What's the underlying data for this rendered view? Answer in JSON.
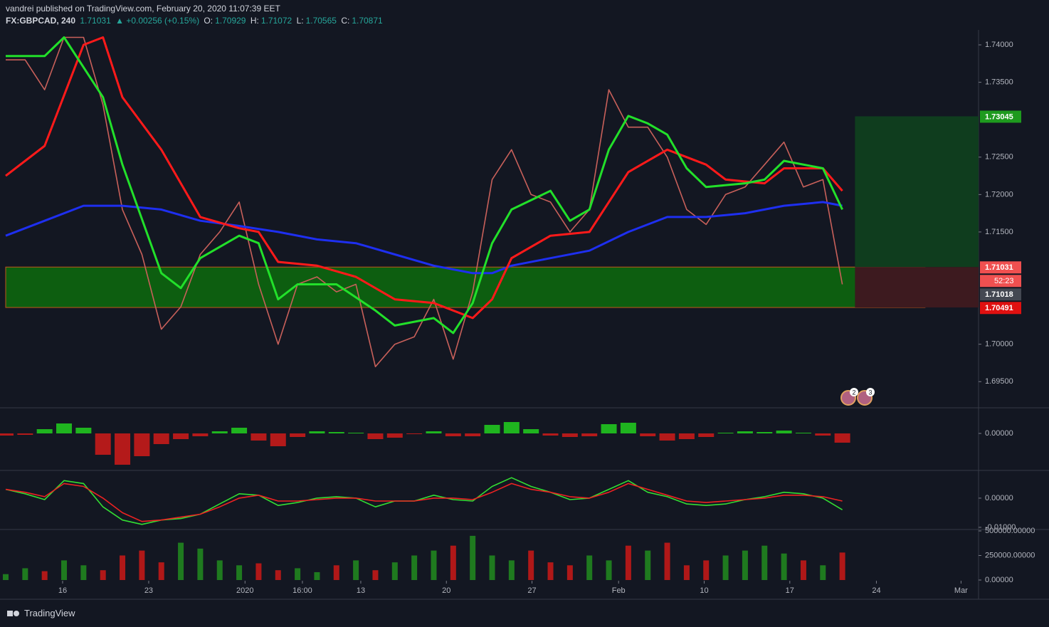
{
  "header": {
    "publisher": "vandrei published on TradingView.com, February 20, 2020 11:07:39 EET",
    "symbol": "FX:GBPCAD, 240",
    "last": "1.71031",
    "change": "▲ +0.00256 (+0.15%)",
    "o_label": "O:",
    "o": "1.70929",
    "h_label": "H:",
    "h": "1.71072",
    "l_label": "L:",
    "l": "1.70565",
    "c_label": "C:",
    "c": "1.70871"
  },
  "footer": {
    "brand": "TradingView"
  },
  "events": [
    "2",
    "3"
  ],
  "chart_data": [
    {
      "type": "line",
      "ylim": [
        1.6916,
        1.742
      ],
      "yticks": [
        {
          "value": 1.74,
          "label": "1.74000"
        },
        {
          "value": 1.735,
          "label": "1.73500"
        },
        {
          "value": 1.725,
          "label": "1.72500"
        },
        {
          "value": 1.72,
          "label": "1.72000"
        },
        {
          "value": 1.715,
          "label": "1.71500"
        },
        {
          "value": 1.7,
          "label": "1.70000"
        },
        {
          "value": 1.695,
          "label": "1.69500"
        }
      ],
      "series": [
        {
          "color": "#c8605a",
          "x": [
            0,
            2,
            4,
            6,
            8,
            10,
            12,
            14,
            16,
            18,
            20,
            22,
            24,
            26,
            28,
            30,
            32,
            34,
            36,
            38,
            40,
            42,
            44,
            46,
            48,
            50,
            52,
            54,
            56,
            58,
            60,
            62,
            64,
            66,
            68,
            70,
            72,
            74,
            76,
            78,
            80,
            82,
            84,
            86
          ],
          "values": [
            1.738,
            1.738,
            1.734,
            1.741,
            1.741,
            1.732,
            1.718,
            1.712,
            1.702,
            1.705,
            1.712,
            1.715,
            1.719,
            1.708,
            1.7,
            1.708,
            1.709,
            1.707,
            1.708,
            1.697,
            1.7,
            1.701,
            1.706,
            1.698,
            1.707,
            1.722,
            1.726,
            1.72,
            1.719,
            1.715,
            1.718,
            1.734,
            1.729,
            1.729,
            1.725,
            1.718,
            1.716,
            1.72,
            1.721,
            1.724,
            1.727,
            1.721,
            1.722,
            1.708
          ]
        },
        {
          "color": "#1e2ff0",
          "x": [
            0,
            4,
            8,
            12,
            16,
            20,
            24,
            28,
            32,
            36,
            40,
            44,
            48,
            50,
            52,
            56,
            60,
            64,
            68,
            72,
            76,
            80,
            84,
            86
          ],
          "values": [
            1.7145,
            1.7165,
            1.7185,
            1.7185,
            1.718,
            1.7165,
            1.7158,
            1.715,
            1.714,
            1.7135,
            1.712,
            1.7105,
            1.7095,
            1.7095,
            1.7105,
            1.7115,
            1.7125,
            1.715,
            1.717,
            1.717,
            1.7175,
            1.7185,
            1.719,
            1.7185
          ]
        },
        {
          "color": "#ff1a1a",
          "x": [
            0,
            4,
            8,
            10,
            12,
            16,
            20,
            24,
            26,
            28,
            32,
            36,
            40,
            44,
            48,
            50,
            52,
            56,
            60,
            64,
            68,
            72,
            74,
            78,
            80,
            84,
            86
          ],
          "values": [
            1.7225,
            1.7265,
            1.74,
            1.741,
            1.733,
            1.726,
            1.717,
            1.7155,
            1.715,
            1.711,
            1.7105,
            1.709,
            1.706,
            1.7055,
            1.7035,
            1.706,
            1.7115,
            1.7145,
            1.715,
            1.723,
            1.726,
            1.724,
            1.722,
            1.7215,
            1.7235,
            1.7235,
            1.7205
          ]
        },
        {
          "color": "#22e02a",
          "x": [
            0,
            4,
            6,
            10,
            12,
            16,
            18,
            20,
            24,
            26,
            28,
            30,
            34,
            38,
            40,
            44,
            46,
            48,
            50,
            52,
            56,
            58,
            60,
            62,
            64,
            66,
            68,
            70,
            72,
            76,
            78,
            80,
            84,
            86
          ],
          "values": [
            1.7385,
            1.7385,
            1.741,
            1.733,
            1.724,
            1.7095,
            1.7075,
            1.7115,
            1.7145,
            1.7135,
            1.706,
            1.708,
            1.708,
            1.7045,
            1.7025,
            1.7035,
            1.7015,
            1.7055,
            1.7135,
            1.718,
            1.7205,
            1.7165,
            1.718,
            1.726,
            1.7305,
            1.7295,
            1.728,
            1.7235,
            1.721,
            1.7215,
            1.722,
            1.7245,
            1.7235,
            1.718
          ]
        }
      ],
      "zones": [
        {
          "x": [
            0,
            94.5
          ],
          "y": [
            1.70491,
            1.71031
          ],
          "color": "#0d6b0d"
        },
        {
          "x": [
            87.3,
            100
          ],
          "y": [
            1.71031,
            1.73045
          ],
          "color": "#0f3d1e"
        },
        {
          "x": [
            87.3,
            100
          ],
          "y": [
            1.70491,
            1.71031
          ],
          "color": "#3d1a1f"
        }
      ],
      "price_labels": [
        {
          "value": 1.73045,
          "color": "#1e9a1e"
        },
        {
          "value": 1.71031,
          "color": "#f05050"
        },
        {
          "value": 1.71018,
          "color": "#444852"
        },
        {
          "value": 1.70491,
          "color": "#e01010"
        }
      ],
      "countdown": {
        "label": "52:23",
        "color": "#f05050"
      }
    },
    {
      "type": "bar",
      "ylim": [
        -0.0051,
        0.0034
      ],
      "yticks": [
        {
          "value": 0,
          "label": "0.00000"
        }
      ],
      "up_color": "#1fb41f",
      "down_color": "#b41a1a",
      "x": [
        0,
        2,
        4,
        6,
        8,
        10,
        12,
        14,
        16,
        18,
        20,
        22,
        24,
        26,
        28,
        30,
        32,
        34,
        36,
        38,
        40,
        42,
        44,
        46,
        48,
        50,
        52,
        54,
        56,
        58,
        60,
        62,
        64,
        66,
        68,
        70,
        72,
        74,
        76,
        78,
        80,
        82,
        84,
        86
      ],
      "values": [
        -0.0003,
        -0.0002,
        0.0006,
        0.0014,
        0.0008,
        -0.003,
        -0.0044,
        -0.0032,
        -0.0015,
        -0.0008,
        -0.0004,
        0.0003,
        0.0008,
        -0.001,
        -0.0018,
        -0.0005,
        0.0003,
        0.0002,
        0.0001,
        -0.0008,
        -0.0006,
        -0.0001,
        0.0003,
        -0.0004,
        -0.0004,
        0.0012,
        0.0016,
        0.0006,
        -0.0003,
        -0.0005,
        -0.0004,
        0.0013,
        0.0015,
        -0.0004,
        -0.001,
        -0.0008,
        -0.0005,
        0.0001,
        0.0003,
        0.0002,
        0.0004,
        0.0001,
        -0.0003,
        -0.0013
      ]
    },
    {
      "type": "line",
      "ylim": [
        -0.0105,
        0.009
      ],
      "yticks": [
        {
          "value": 0,
          "label": "0.00000"
        },
        {
          "value": -0.01,
          "label": "-0.01000"
        }
      ],
      "series": [
        {
          "color": "#33dd33",
          "x": [
            0,
            2,
            4,
            6,
            8,
            10,
            12,
            14,
            16,
            18,
            20,
            22,
            24,
            26,
            28,
            30,
            32,
            34,
            36,
            38,
            40,
            42,
            44,
            46,
            48,
            50,
            52,
            54,
            56,
            58,
            60,
            62,
            64,
            66,
            68,
            70,
            72,
            74,
            76,
            78,
            80,
            82,
            84,
            86
          ],
          "values": [
            0.003,
            0.0015,
            -0.0005,
            0.006,
            0.005,
            -0.003,
            -0.0075,
            -0.009,
            -0.0075,
            -0.007,
            -0.0055,
            -0.002,
            0.0015,
            0.001,
            -0.0025,
            -0.0015,
            0,
            0.0005,
            0,
            -0.003,
            -0.001,
            -0.001,
            0.001,
            -0.0005,
            -0.001,
            0.004,
            0.007,
            0.004,
            0.002,
            -0.0005,
            0,
            0.003,
            0.006,
            0.002,
            0.0005,
            -0.002,
            -0.0025,
            -0.002,
            -0.0005,
            0.0005,
            0.002,
            0.0015,
            0,
            -0.004
          ]
        },
        {
          "color": "#ee2222",
          "x": [
            0,
            2,
            4,
            6,
            8,
            10,
            12,
            14,
            16,
            18,
            20,
            22,
            24,
            26,
            28,
            30,
            32,
            34,
            36,
            38,
            40,
            42,
            44,
            46,
            48,
            50,
            52,
            54,
            56,
            58,
            60,
            62,
            64,
            66,
            68,
            70,
            72,
            74,
            76,
            78,
            80,
            82,
            84,
            86
          ],
          "values": [
            0.003,
            0.002,
            0.0005,
            0.005,
            0.004,
            0,
            -0.005,
            -0.008,
            -0.0075,
            -0.0065,
            -0.0055,
            -0.003,
            0,
            0.001,
            -0.001,
            -0.001,
            -0.0005,
            0,
            0,
            -0.001,
            -0.001,
            -0.001,
            0,
            0,
            -0.0005,
            0.002,
            0.005,
            0.003,
            0.002,
            0.0005,
            0,
            0.002,
            0.005,
            0.003,
            0.001,
            -0.001,
            -0.0015,
            -0.001,
            -0.0005,
            0,
            0.001,
            0.001,
            0.0005,
            -0.001
          ]
        }
      ]
    },
    {
      "type": "bar",
      "ylim": [
        0,
        500000
      ],
      "yticks": [
        {
          "value": 0,
          "label": "0.00000"
        },
        {
          "value": 250000,
          "label": "250000.00000"
        },
        {
          "value": 500000,
          "label": "500000.00000"
        }
      ],
      "up_color": "#1f7a1f",
      "down_color": "#b01818",
      "x": [
        0,
        2,
        4,
        6,
        8,
        10,
        12,
        14,
        16,
        18,
        20,
        22,
        24,
        26,
        28,
        30,
        32,
        34,
        36,
        38,
        40,
        42,
        44,
        46,
        48,
        50,
        52,
        54,
        56,
        58,
        60,
        62,
        64,
        66,
        68,
        70,
        72,
        74,
        76,
        78,
        80,
        82,
        84,
        86
      ],
      "values": [
        60000,
        120000,
        90000,
        200000,
        150000,
        100000,
        250000,
        300000,
        180000,
        380000,
        320000,
        200000,
        150000,
        170000,
        100000,
        120000,
        80000,
        150000,
        200000,
        100000,
        180000,
        250000,
        300000,
        350000,
        450000,
        250000,
        200000,
        300000,
        180000,
        150000,
        250000,
        200000,
        350000,
        300000,
        380000,
        150000,
        200000,
        250000,
        300000,
        350000,
        270000,
        200000,
        150000,
        280000
      ],
      "xlim": [
        0,
        100
      ],
      "xticks": [
        {
          "value": 5.85,
          "label": "16"
        },
        {
          "value": 14.7,
          "label": "23"
        },
        {
          "value": 24.6,
          "label": "2020"
        },
        {
          "value": 30.5,
          "label": "16:00"
        },
        {
          "value": 36.5,
          "label": "13"
        },
        {
          "value": 45.3,
          "label": "20"
        },
        {
          "value": 54.1,
          "label": "27"
        },
        {
          "value": 63,
          "label": "Feb"
        },
        {
          "value": 71.8,
          "label": "10"
        },
        {
          "value": 80.6,
          "label": "17"
        },
        {
          "value": 89.5,
          "label": "24"
        },
        {
          "value": 98.2,
          "label": "Mar"
        }
      ]
    }
  ]
}
